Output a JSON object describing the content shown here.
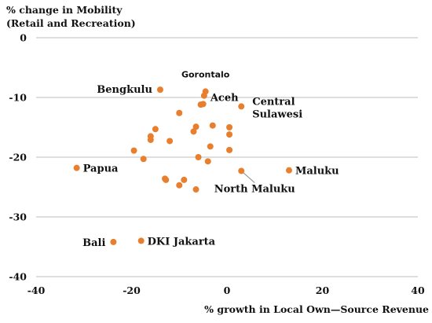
{
  "chart_data": {
    "type": "scatter",
    "ylabel_line1": "% change in Mobility",
    "ylabel_line2": "(Retail and Recreation)",
    "xlabel": "% growth in Local Own—Source Revenue",
    "xlim": [
      -40,
      40
    ],
    "ylim": [
      -40,
      0
    ],
    "xticks": [
      -40,
      -20,
      0,
      20,
      40
    ],
    "yticks": [
      0,
      -10,
      -20,
      -30,
      -40
    ],
    "xtick_labels": [
      "-40",
      "-20",
      "0",
      "20",
      "40"
    ],
    "ytick_labels": [
      "0",
      "-10",
      "-20",
      "-30",
      "-40"
    ],
    "grid": "horizontal",
    "color": "#e87f2e",
    "points": [
      {
        "x": -14,
        "y": -8.7,
        "label": "Bengkulu",
        "label_style": "large"
      },
      {
        "x": -4.5,
        "y": -9.0,
        "label": "Gorontalo",
        "label_style": "small"
      },
      {
        "x": -4.8,
        "y": -9.7,
        "label": "Aceh",
        "label_style": "large"
      },
      {
        "x": 3,
        "y": -11.5,
        "label_lines": [
          "Central",
          "Sulawesi"
        ],
        "label_style": "large"
      },
      {
        "x": -31.5,
        "y": -21.8,
        "label": "Papua",
        "label_style": "large"
      },
      {
        "x": 13,
        "y": -22.2,
        "label": "Maluku",
        "label_style": "large"
      },
      {
        "x": 3,
        "y": -22.3,
        "label": "North Maluku",
        "label_style": "large"
      },
      {
        "x": -23.8,
        "y": -34.2,
        "label": "Bali",
        "label_style": "large"
      },
      {
        "x": -18,
        "y": -34.0,
        "label": "DKI Jakarta",
        "label_style": "large"
      },
      {
        "x": -5.5,
        "y": -11.2
      },
      {
        "x": -5.0,
        "y": -11.1
      },
      {
        "x": -10,
        "y": -12.6
      },
      {
        "x": -6.5,
        "y": -14.9
      },
      {
        "x": -3,
        "y": -14.7
      },
      {
        "x": 0.5,
        "y": -15.0
      },
      {
        "x": -15,
        "y": -15.3
      },
      {
        "x": -7,
        "y": -15.7
      },
      {
        "x": -16,
        "y": -16.5
      },
      {
        "x": 0.5,
        "y": -16.2
      },
      {
        "x": -16,
        "y": -17.1
      },
      {
        "x": -12,
        "y": -17.3
      },
      {
        "x": -3.5,
        "y": -18.2
      },
      {
        "x": -19.5,
        "y": -18.9
      },
      {
        "x": 0.5,
        "y": -18.8
      },
      {
        "x": -17.5,
        "y": -20.3
      },
      {
        "x": -6,
        "y": -20.0
      },
      {
        "x": -4,
        "y": -20.7
      },
      {
        "x": -13,
        "y": -23.6
      },
      {
        "x": -12.8,
        "y": -23.8
      },
      {
        "x": -9,
        "y": -23.8
      },
      {
        "x": -10,
        "y": -24.7
      },
      {
        "x": -6.5,
        "y": -25.4
      }
    ]
  }
}
